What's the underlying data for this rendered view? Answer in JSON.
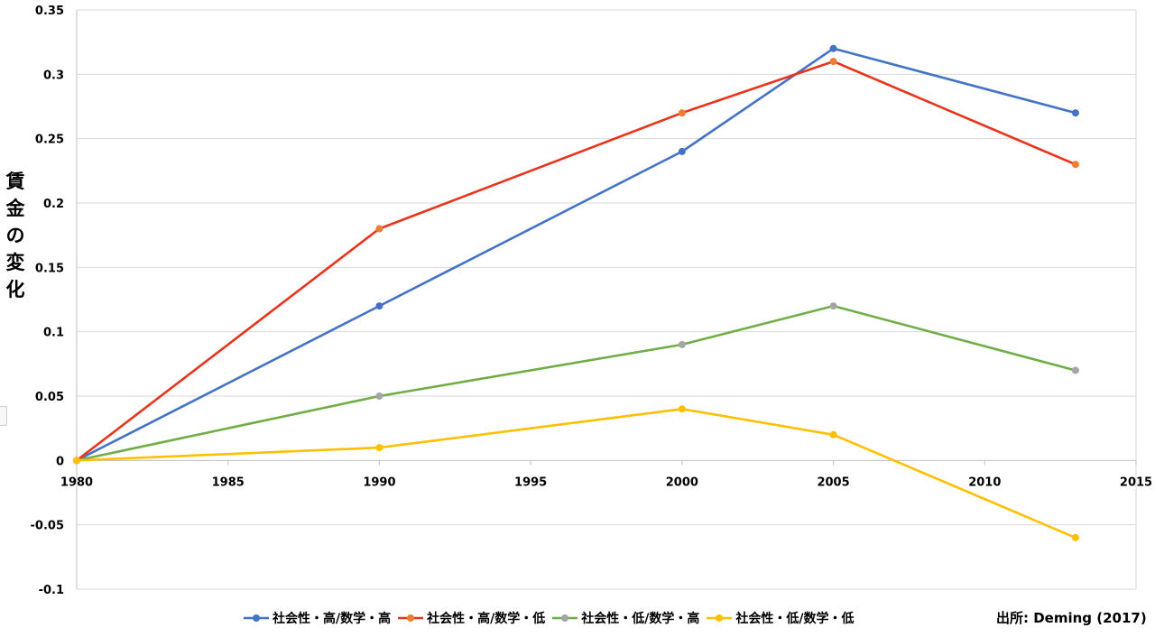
{
  "chart_data": {
    "type": "line",
    "ylabel": "賃金の変化",
    "xlim": [
      1980,
      2015
    ],
    "ylim": [
      -0.1,
      0.35
    ],
    "x_ticks": [
      1980,
      1985,
      1990,
      1995,
      2000,
      2005,
      2010,
      2015
    ],
    "y_ticks": [
      -0.1,
      -0.05,
      0,
      0.05,
      0.1,
      0.15,
      0.2,
      0.25,
      0.3,
      0.35
    ],
    "y_tick_labels": [
      "-0.1",
      "-0.05",
      "0",
      "0.05",
      "0.1",
      "0.15",
      "0.2",
      "0.25",
      "0.3",
      "0.35"
    ],
    "grid": "horizontal",
    "legend_position": "bottom",
    "x": [
      1980,
      1990,
      2000,
      2005,
      2013
    ],
    "series": [
      {
        "name": "社会性・高/数学・高",
        "color": "#4472C4",
        "marker_color": "#4472C4",
        "values": [
          0,
          0.12,
          0.24,
          0.32,
          0.27
        ]
      },
      {
        "name": "社会性・高/数学・低",
        "color": "#E8341C",
        "marker_color": "#ED7D31",
        "values": [
          0,
          0.18,
          0.27,
          0.31,
          0.23
        ]
      },
      {
        "name": "社会性・低/数学・高",
        "color": "#70AD47",
        "marker_color": "#A5A5A5",
        "values": [
          0,
          0.05,
          0.09,
          0.12,
          0.07
        ]
      },
      {
        "name": "社会性・低/数学・低",
        "color": "#FFC000",
        "marker_color": "#FFC000",
        "values": [
          0,
          0.01,
          0.04,
          0.02,
          -0.06
        ]
      }
    ]
  },
  "source_text": "出所: Deming (2017)"
}
